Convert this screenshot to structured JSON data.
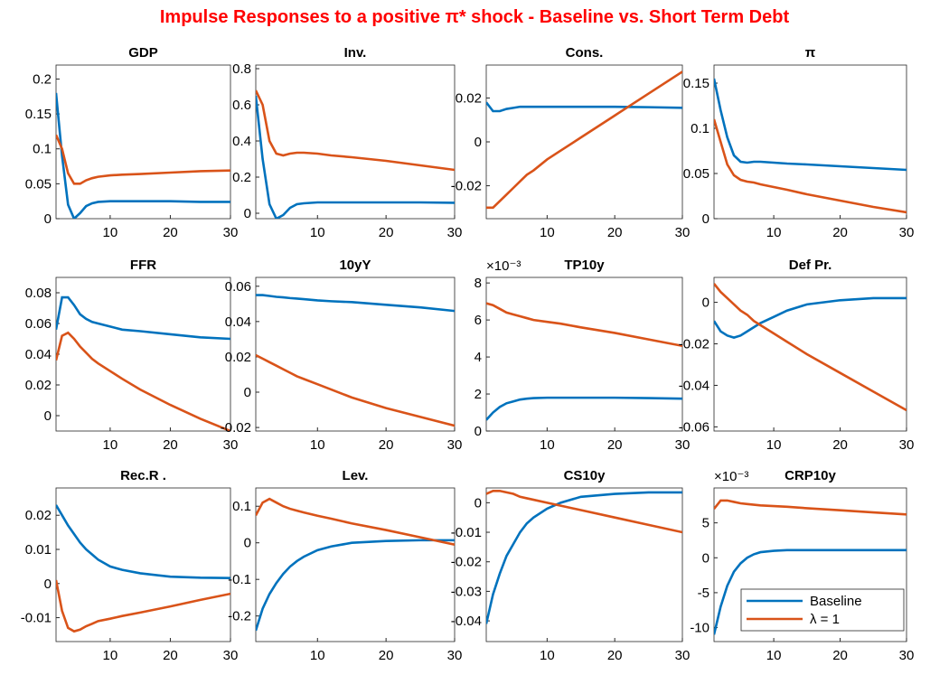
{
  "title": "Impulse Responses to a positive π* shock - Baseline vs. Short Term Debt",
  "chart_data": [
    {
      "type": "line",
      "title": "GDP",
      "x": [
        1,
        2,
        3,
        4,
        5,
        6,
        7,
        8,
        10,
        12,
        15,
        20,
        25,
        30
      ],
      "xlim": [
        1,
        30
      ],
      "xticks": [
        10,
        20,
        30
      ],
      "ylim": [
        0,
        0.22
      ],
      "yticks": [
        0,
        0.05,
        0.1,
        0.15,
        0.2
      ],
      "series": [
        {
          "color": "#0072BD",
          "values": [
            0.18,
            0.09,
            0.02,
            0.0,
            0.008,
            0.018,
            0.022,
            0.024,
            0.025,
            0.025,
            0.025,
            0.025,
            0.024,
            0.024
          ]
        },
        {
          "color": "#D95319",
          "values": [
            0.12,
            0.1,
            0.065,
            0.05,
            0.05,
            0.055,
            0.058,
            0.06,
            0.062,
            0.063,
            0.064,
            0.066,
            0.068,
            0.069
          ]
        }
      ]
    },
    {
      "type": "line",
      "title": "Inv.",
      "x": [
        1,
        2,
        3,
        4,
        5,
        6,
        7,
        8,
        10,
        12,
        15,
        20,
        25,
        30
      ],
      "xlim": [
        1,
        30
      ],
      "xticks": [
        10,
        20,
        30
      ],
      "ylim": [
        -0.03,
        0.82
      ],
      "yticks": [
        0,
        0.2,
        0.4,
        0.6,
        0.8
      ],
      "series": [
        {
          "color": "#0072BD",
          "values": [
            0.65,
            0.3,
            0.05,
            -0.03,
            -0.01,
            0.03,
            0.05,
            0.055,
            0.06,
            0.06,
            0.06,
            0.06,
            0.06,
            0.058
          ]
        },
        {
          "color": "#D95319",
          "values": [
            0.68,
            0.6,
            0.4,
            0.33,
            0.32,
            0.33,
            0.335,
            0.335,
            0.33,
            0.32,
            0.31,
            0.29,
            0.265,
            0.24
          ]
        }
      ]
    },
    {
      "type": "line",
      "title": "Cons.",
      "x": [
        1,
        2,
        3,
        4,
        5,
        6,
        7,
        8,
        10,
        12,
        15,
        20,
        25,
        30
      ],
      "xlim": [
        1,
        30
      ],
      "xticks": [
        10,
        20,
        30
      ],
      "ylim": [
        -0.035,
        0.035
      ],
      "yticks": [
        -0.02,
        0,
        0.02
      ],
      "series": [
        {
          "color": "#0072BD",
          "values": [
            0.018,
            0.014,
            0.014,
            0.015,
            0.0155,
            0.016,
            0.016,
            0.016,
            0.016,
            0.016,
            0.016,
            0.016,
            0.0158,
            0.0155
          ]
        },
        {
          "color": "#D95319",
          "values": [
            -0.03,
            -0.03,
            -0.027,
            -0.024,
            -0.021,
            -0.018,
            -0.015,
            -0.013,
            -0.008,
            -0.004,
            0.002,
            0.012,
            0.022,
            0.032
          ]
        }
      ]
    },
    {
      "type": "line",
      "title": "π",
      "x": [
        1,
        2,
        3,
        4,
        5,
        6,
        7,
        8,
        10,
        12,
        15,
        20,
        25,
        30
      ],
      "xlim": [
        1,
        30
      ],
      "xticks": [
        10,
        20,
        30
      ],
      "ylim": [
        0,
        0.17
      ],
      "yticks": [
        0,
        0.05,
        0.1,
        0.15
      ],
      "series": [
        {
          "color": "#0072BD",
          "values": [
            0.155,
            0.12,
            0.09,
            0.07,
            0.063,
            0.062,
            0.063,
            0.063,
            0.062,
            0.061,
            0.06,
            0.058,
            0.056,
            0.054
          ]
        },
        {
          "color": "#D95319",
          "values": [
            0.11,
            0.085,
            0.06,
            0.048,
            0.043,
            0.041,
            0.04,
            0.038,
            0.035,
            0.032,
            0.027,
            0.02,
            0.013,
            0.007
          ]
        }
      ]
    },
    {
      "type": "line",
      "title": "FFR",
      "x": [
        1,
        2,
        3,
        4,
        5,
        6,
        7,
        8,
        10,
        12,
        15,
        20,
        25,
        30
      ],
      "xlim": [
        1,
        30
      ],
      "xticks": [
        10,
        20,
        30
      ],
      "ylim": [
        -0.01,
        0.09
      ],
      "yticks": [
        0,
        0.02,
        0.04,
        0.06,
        0.08
      ],
      "series": [
        {
          "color": "#0072BD",
          "values": [
            0.056,
            0.077,
            0.077,
            0.072,
            0.066,
            0.063,
            0.061,
            0.06,
            0.058,
            0.056,
            0.055,
            0.053,
            0.051,
            0.05
          ]
        },
        {
          "color": "#D95319",
          "values": [
            0.036,
            0.052,
            0.054,
            0.05,
            0.045,
            0.041,
            0.037,
            0.034,
            0.029,
            0.024,
            0.017,
            0.007,
            -0.002,
            -0.01
          ]
        }
      ]
    },
    {
      "type": "line",
      "title": "10yY",
      "x": [
        1,
        2,
        3,
        4,
        5,
        6,
        7,
        8,
        10,
        12,
        15,
        20,
        25,
        30
      ],
      "xlim": [
        1,
        30
      ],
      "xticks": [
        10,
        20,
        30
      ],
      "ylim": [
        -0.022,
        0.065
      ],
      "yticks": [
        -0.02,
        0,
        0.02,
        0.04,
        0.06
      ],
      "series": [
        {
          "color": "#0072BD",
          "values": [
            0.055,
            0.055,
            0.0545,
            0.054,
            0.0537,
            0.0533,
            0.053,
            0.0527,
            0.052,
            0.0515,
            0.051,
            0.0495,
            0.048,
            0.046
          ]
        },
        {
          "color": "#D95319",
          "values": [
            0.021,
            0.019,
            0.017,
            0.015,
            0.013,
            0.011,
            0.009,
            0.0075,
            0.0045,
            0.0015,
            -0.003,
            -0.009,
            -0.014,
            -0.019
          ]
        }
      ]
    },
    {
      "type": "line",
      "title": "TP10y",
      "y_multiplier": "×10⁻³",
      "x": [
        1,
        2,
        3,
        4,
        5,
        6,
        7,
        8,
        10,
        12,
        15,
        20,
        25,
        30
      ],
      "xlim": [
        1,
        30
      ],
      "xticks": [
        10,
        20,
        30
      ],
      "ylim": [
        0,
        8.3
      ],
      "yticks": [
        0,
        2,
        4,
        6,
        8
      ],
      "series": [
        {
          "color": "#0072BD",
          "values": [
            0.6,
            1.0,
            1.3,
            1.5,
            1.6,
            1.7,
            1.75,
            1.78,
            1.8,
            1.8,
            1.8,
            1.8,
            1.78,
            1.75
          ]
        },
        {
          "color": "#D95319",
          "values": [
            6.9,
            6.8,
            6.6,
            6.4,
            6.3,
            6.2,
            6.1,
            6.0,
            5.9,
            5.8,
            5.6,
            5.3,
            4.95,
            4.6
          ]
        }
      ]
    },
    {
      "type": "line",
      "title": "Def Pr.",
      "x": [
        1,
        2,
        3,
        4,
        5,
        6,
        7,
        8,
        10,
        12,
        15,
        20,
        25,
        30
      ],
      "xlim": [
        1,
        30
      ],
      "xticks": [
        10,
        20,
        30
      ],
      "ylim": [
        -0.062,
        0.012
      ],
      "yticks": [
        -0.06,
        -0.04,
        -0.02,
        0
      ],
      "series": [
        {
          "color": "#0072BD",
          "values": [
            -0.009,
            -0.014,
            -0.016,
            -0.017,
            -0.016,
            -0.014,
            -0.012,
            -0.01,
            -0.007,
            -0.004,
            -0.001,
            0.001,
            0.002,
            0.002
          ]
        },
        {
          "color": "#D95319",
          "values": [
            0.009,
            0.005,
            0.002,
            -0.001,
            -0.004,
            -0.006,
            -0.009,
            -0.011,
            -0.015,
            -0.019,
            -0.025,
            -0.034,
            -0.043,
            -0.052
          ]
        }
      ]
    },
    {
      "type": "line",
      "title": "Rec.R .",
      "x": [
        1,
        2,
        3,
        4,
        5,
        6,
        7,
        8,
        10,
        12,
        15,
        20,
        25,
        30
      ],
      "xlim": [
        1,
        30
      ],
      "xticks": [
        10,
        20,
        30
      ],
      "ylim": [
        -0.017,
        0.028
      ],
      "yticks": [
        -0.01,
        0,
        0.01,
        0.02
      ],
      "series": [
        {
          "color": "#0072BD",
          "values": [
            0.023,
            0.02,
            0.017,
            0.0145,
            0.012,
            0.01,
            0.0085,
            0.007,
            0.005,
            0.004,
            0.003,
            0.002,
            0.0017,
            0.0016
          ]
        },
        {
          "color": "#D95319",
          "values": [
            0.001,
            -0.008,
            -0.013,
            -0.014,
            -0.0135,
            -0.0125,
            -0.0118,
            -0.011,
            -0.0103,
            -0.0095,
            -0.0085,
            -0.0067,
            -0.0048,
            -0.003
          ]
        }
      ]
    },
    {
      "type": "line",
      "title": "Lev.",
      "x": [
        1,
        2,
        3,
        4,
        5,
        6,
        7,
        8,
        10,
        12,
        15,
        20,
        25,
        30
      ],
      "xlim": [
        1,
        30
      ],
      "xticks": [
        10,
        20,
        30
      ],
      "ylim": [
        -0.27,
        0.15
      ],
      "yticks": [
        -0.2,
        -0.1,
        0,
        0.1
      ],
      "series": [
        {
          "color": "#0072BD",
          "values": [
            -0.24,
            -0.18,
            -0.14,
            -0.11,
            -0.085,
            -0.065,
            -0.05,
            -0.038,
            -0.02,
            -0.01,
            0.0,
            0.005,
            0.007,
            0.007
          ]
        },
        {
          "color": "#D95319",
          "values": [
            0.075,
            0.11,
            0.12,
            0.11,
            0.1,
            0.093,
            0.088,
            0.083,
            0.074,
            0.066,
            0.053,
            0.035,
            0.015,
            -0.005
          ]
        }
      ]
    },
    {
      "type": "line",
      "title": "CS10y",
      "x": [
        1,
        2,
        3,
        4,
        5,
        6,
        7,
        8,
        10,
        12,
        15,
        20,
        25,
        30
      ],
      "xlim": [
        1,
        30
      ],
      "xticks": [
        10,
        20,
        30
      ],
      "ylim": [
        -0.047,
        0.005
      ],
      "yticks": [
        -0.04,
        -0.03,
        -0.02,
        -0.01,
        0
      ],
      "series": [
        {
          "color": "#0072BD",
          "values": [
            -0.041,
            -0.031,
            -0.024,
            -0.018,
            -0.014,
            -0.01,
            -0.007,
            -0.005,
            -0.002,
            0.0,
            0.002,
            0.003,
            0.0035,
            0.0035
          ]
        },
        {
          "color": "#D95319",
          "values": [
            0.003,
            0.004,
            0.004,
            0.0035,
            0.003,
            0.002,
            0.0015,
            0.001,
            0.0,
            -0.001,
            -0.0025,
            -0.005,
            -0.0075,
            -0.01
          ]
        }
      ]
    },
    {
      "type": "line",
      "title": "CRP10y",
      "y_multiplier": "×10⁻³",
      "x": [
        1,
        2,
        3,
        4,
        5,
        6,
        7,
        8,
        10,
        12,
        15,
        20,
        25,
        30
      ],
      "xlim": [
        1,
        30
      ],
      "xticks": [
        10,
        20,
        30
      ],
      "ylim": [
        -12,
        10
      ],
      "yticks": [
        -10,
        -5,
        0,
        5
      ],
      "legend": "lower right",
      "series": [
        {
          "name": "Baseline",
          "color": "#0072BD",
          "values": [
            -11,
            -7,
            -4,
            -2,
            -0.8,
            0,
            0.5,
            0.8,
            1.0,
            1.1,
            1.1,
            1.1,
            1.1,
            1.1
          ]
        },
        {
          "name": "λ = 1",
          "color": "#D95319",
          "values": [
            7,
            8.2,
            8.2,
            8,
            7.8,
            7.7,
            7.6,
            7.5,
            7.4,
            7.3,
            7.1,
            6.8,
            6.5,
            6.2
          ]
        }
      ]
    }
  ]
}
